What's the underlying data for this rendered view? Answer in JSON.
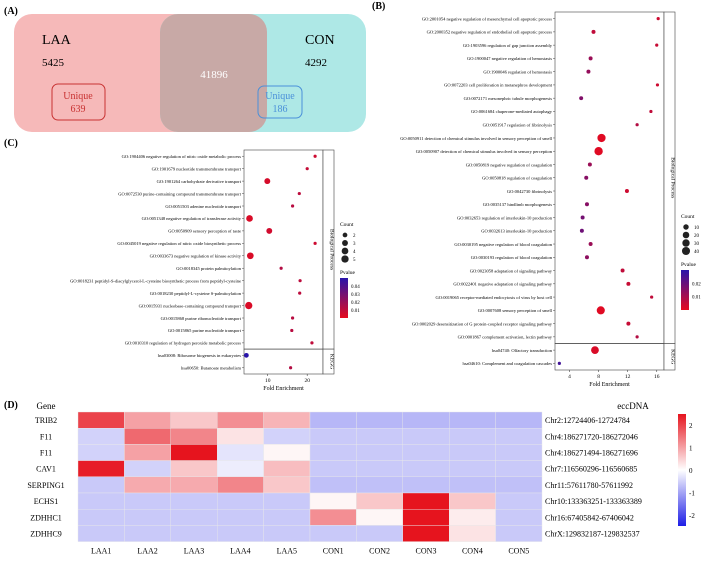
{
  "panel_a": {
    "label": "(A)",
    "left_name": "LAA",
    "left_count": "5425",
    "right_name": "CON",
    "right_count": "4292",
    "overlap_count": "41896",
    "left_unique_title": "Unique",
    "left_unique_count": "639",
    "right_unique_title": "Unique",
    "right_unique_count": "186",
    "colors": {
      "left_fill": "#f6b9b9",
      "right_fill": "#aee8e6",
      "overlap_fill": "#c8a9a6",
      "left_box": "#c83232",
      "right_box": "#4a90d9"
    }
  },
  "chart_data": [
    {
      "id": "panel_b",
      "type": "scatter",
      "panel_label": "(B)",
      "xlabel": "Fold Enrichment",
      "xlim": [
        2,
        17
      ],
      "xticks": [
        4,
        8,
        12,
        16
      ],
      "legend_count_title": "Count",
      "legend_count_values": [
        10,
        20,
        30,
        40
      ],
      "legend_p_title": "Pvalue",
      "legend_p_ticks": [
        "0.02",
        "0.01"
      ],
      "p_range": [
        0.0,
        0.03
      ],
      "count_range": [
        2,
        45
      ],
      "groups": [
        {
          "name": "Biological Process",
          "terms": [
            {
              "label": "GO:2001054 negative regulation of mesenchymal cell apoptotic process",
              "fold": 16.2,
              "count": 2,
              "p": 0.004
            },
            {
              "label": "GO:2000352 negative regulation of endothelial cell apoptotic process",
              "fold": 7.3,
              "count": 3,
              "p": 0.006
            },
            {
              "label": "GO:1903596 regulation of gap junction assembly",
              "fold": 16.0,
              "count": 2,
              "p": 0.005
            },
            {
              "label": "GO:1900047 negative regulation of hemostasis",
              "fold": 6.9,
              "count": 3,
              "p": 0.012
            },
            {
              "label": "GO:1900046 regulation of hemostasis",
              "fold": 6.6,
              "count": 3,
              "p": 0.013
            },
            {
              "label": "GO:0072203 cell proliferation in metanephros development",
              "fold": 16.1,
              "count": 2,
              "p": 0.004
            },
            {
              "label": "GO:0072171 mesonephric tubule morphogenesis",
              "fold": 5.6,
              "count": 3,
              "p": 0.016
            },
            {
              "label": "GO:0061684 chaperone-mediated autophagy",
              "fold": 15.2,
              "count": 2,
              "p": 0.006
            },
            {
              "label": "GO:0051917 regulation of fibrinolysis",
              "fold": 13.3,
              "count": 2,
              "p": 0.008
            },
            {
              "label": "GO:0050911 detection of chemical stimulus involved in sensory perception of smell",
              "fold": 8.4,
              "count": 42,
              "p": 0.001
            },
            {
              "label": "GO:0050907 detection of chemical stimulus involved in sensory perception",
              "fold": 8.0,
              "count": 44,
              "p": 0.001
            },
            {
              "label": "GO:0050819 negative regulation of coagulation",
              "fold": 6.8,
              "count": 3,
              "p": 0.012
            },
            {
              "label": "GO:0050818 regulation of coagulation",
              "fold": 6.3,
              "count": 3,
              "p": 0.015
            },
            {
              "label": "GO:0042730 fibrinolysis",
              "fold": 11.9,
              "count": 3,
              "p": 0.004
            },
            {
              "label": "GO:0035137 hindlimb morphogenesis",
              "fold": 6.4,
              "count": 3,
              "p": 0.015
            },
            {
              "label": "GO:0032653 regulation of interleukin-10 production",
              "fold": 5.8,
              "count": 3,
              "p": 0.018
            },
            {
              "label": "GO:0032613 interleukin-10 production",
              "fold": 5.7,
              "count": 3,
              "p": 0.019
            },
            {
              "label": "GO:0030195 negative regulation of blood coagulation",
              "fold": 6.9,
              "count": 3,
              "p": 0.012
            },
            {
              "label": "GO:0030193 regulation of blood coagulation",
              "fold": 6.4,
              "count": 3,
              "p": 0.014
            },
            {
              "label": "GO:0023058 adaptation of signaling pathway",
              "fold": 11.3,
              "count": 3,
              "p": 0.006
            },
            {
              "label": "GO:0022401 negative adaptation of signaling pathway",
              "fold": 12.1,
              "count": 3,
              "p": 0.005
            },
            {
              "label": "GO:0019065 receptor-mediated endocytosis of virus by host cell",
              "fold": 15.3,
              "count": 2,
              "p": 0.006
            },
            {
              "label": "GO:0007608 sensory perception of smell",
              "fold": 8.3,
              "count": 40,
              "p": 0.001
            },
            {
              "label": "GO:0002029 desensitization of G protein-coupled receptor signaling pathway",
              "fold": 12.1,
              "count": 3,
              "p": 0.005
            },
            {
              "label": "GO:0001867 complement activation, lectin pathway",
              "fold": 13.3,
              "count": 2,
              "p": 0.008
            }
          ]
        },
        {
          "name": "KEGG",
          "terms": [
            {
              "label": "hsa04740: Olfactory transduction",
              "fold": 7.5,
              "count": 35,
              "p": 0.002
            },
            {
              "label": "hsa04610: Complement and coagulation cascades",
              "fold": 2.6,
              "count": 2,
              "p": 0.026
            }
          ]
        }
      ]
    },
    {
      "id": "panel_c",
      "type": "scatter",
      "panel_label": "(C)",
      "xlabel": "Fold Enrichment",
      "xlim": [
        4,
        24
      ],
      "xticks": [
        10,
        20
      ],
      "legend_count_title": "Count",
      "legend_count_values": [
        2,
        3,
        4,
        5
      ],
      "legend_p_title": "Pvalue",
      "legend_p_ticks": [
        "0.04",
        "0.03",
        "0.02",
        "0.01"
      ],
      "p_range": [
        0.0,
        0.045
      ],
      "count_range": [
        1.5,
        5.5
      ],
      "groups": [
        {
          "name": "Biological Process",
          "terms": [
            {
              "label": "GO:1904406 negative regulation of nitric oxide metabolic process",
              "fold": 22.0,
              "count": 1,
              "p": 0.006
            },
            {
              "label": "GO:1901679 nucleotide transmembrane transport",
              "fold": 20.0,
              "count": 1,
              "p": 0.008
            },
            {
              "label": "GO:1901264 carbohydrate derivative transport",
              "fold": 9.9,
              "count": 3,
              "p": 0.004
            },
            {
              "label": "GO:0072530 purine-containing compound transmembrane transport",
              "fold": 18.0,
              "count": 1,
              "p": 0.01
            },
            {
              "label": "GO:0051503 adenine nucleotide transport",
              "fold": 16.3,
              "count": 1,
              "p": 0.011
            },
            {
              "label": "GO:0051348 negative regulation of transferase activity",
              "fold": 5.4,
              "count": 4,
              "p": 0.003
            },
            {
              "label": "GO:0050909 sensory perception of taste",
              "fold": 10.4,
              "count": 3,
              "p": 0.005
            },
            {
              "label": "GO:0045019 negative regulation of nitric oxide biosynthetic process",
              "fold": 22.0,
              "count": 1,
              "p": 0.006
            },
            {
              "label": "GO:0033673 negative regulation of kinase activity",
              "fold": 5.6,
              "count": 4,
              "p": 0.003
            },
            {
              "label": "GO:0018345 protein palmitoylation",
              "fold": 13.4,
              "count": 1,
              "p": 0.012
            },
            {
              "label": "GO:0018231 peptidyl-S-diacylglycerol-L-cysteine biosynthetic process from peptidyl-cysteine",
              "fold": 18.2,
              "count": 1,
              "p": 0.01
            },
            {
              "label": "GO:0018230 peptidyl-L-cysteine S-palmitoylation",
              "fold": 18.1,
              "count": 1,
              "p": 0.01
            },
            {
              "label": "GO:0015931 nucleobase-containing compound transport",
              "fold": 5.2,
              "count": 5,
              "p": 0.003
            },
            {
              "label": "GO:0015868 purine ribonucleotide transport",
              "fold": 16.3,
              "count": 1,
              "p": 0.011
            },
            {
              "label": "GO:0015865 purine nucleotide transport",
              "fold": 16.1,
              "count": 1,
              "p": 0.011
            },
            {
              "label": "GO:0010310 regulation of hydrogen peroxide metabolic process",
              "fold": 21.2,
              "count": 1,
              "p": 0.009
            }
          ]
        },
        {
          "name": "KEGG",
          "terms": [
            {
              "label": "hsa03008: Ribosome biogenesis in eukaryotes",
              "fold": 4.6,
              "count": 2,
              "p": 0.045
            },
            {
              "label": "hsa00650: Butanoate metabolism",
              "fold": 15.8,
              "count": 1,
              "p": 0.012
            }
          ]
        }
      ]
    },
    {
      "id": "panel_d",
      "type": "heatmap",
      "panel_label": "(D)",
      "row_header": "Gene",
      "right_header": "eccDNA",
      "columns": [
        "LAA1",
        "LAA2",
        "LAA3",
        "LAA4",
        "LAA5",
        "CON1",
        "CON2",
        "CON3",
        "CON4",
        "CON5"
      ],
      "rows": [
        "TRIB2",
        "F11",
        "F11",
        "CAV1",
        "SERPING1",
        "ECHS1",
        "ZDHHC1",
        "ZDHHC9"
      ],
      "row_right_labels": [
        "Chr2:12724406-12724784",
        "Chr4:186271720-186272046",
        "Chr4:186271494-186271696",
        "Chr7:116560296-116560685",
        "Chr11:57611780-57611992",
        "Chr10:133363251-133363389",
        "Chr16:67405842-67406042",
        "ChrX:129832187-129832537"
      ],
      "values": [
        [
          2.0,
          1.0,
          0.6,
          1.2,
          0.8,
          -0.8,
          -0.8,
          -0.8,
          -0.8,
          -0.8
        ],
        [
          -0.5,
          1.6,
          1.3,
          0.3,
          -0.5,
          -0.6,
          -0.6,
          -0.6,
          -0.6,
          -0.6
        ],
        [
          -0.5,
          1.0,
          2.6,
          -0.3,
          0.1,
          -0.6,
          -0.6,
          -0.6,
          -0.6,
          -0.6
        ],
        [
          2.4,
          -0.5,
          0.6,
          -0.2,
          0.7,
          -0.6,
          -0.6,
          -0.6,
          -0.6,
          -0.6
        ],
        [
          -0.6,
          0.9,
          0.9,
          1.3,
          0.6,
          -0.7,
          -0.7,
          -0.7,
          -0.7,
          -0.7
        ],
        [
          -0.6,
          -0.6,
          -0.6,
          -0.6,
          -0.6,
          0.1,
          0.6,
          2.8,
          0.6,
          -0.6
        ],
        [
          -0.6,
          -0.6,
          -0.6,
          -0.6,
          -0.6,
          1.2,
          0.1,
          2.5,
          0.2,
          -0.6
        ],
        [
          -0.6,
          -0.6,
          -0.6,
          -0.6,
          -0.6,
          -0.6,
          -0.6,
          2.8,
          0.3,
          -0.6
        ]
      ],
      "scale_range": [
        -2.5,
        2.5
      ],
      "scale_ticks": [
        2,
        1,
        0,
        -1,
        -2
      ]
    }
  ]
}
